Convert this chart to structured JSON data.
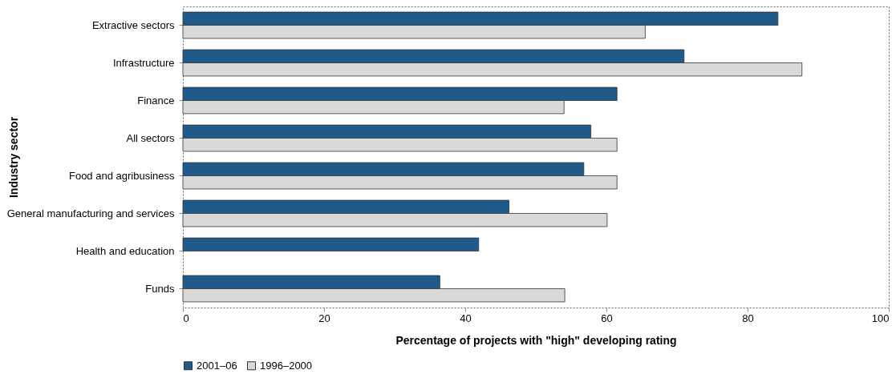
{
  "chart_data": {
    "type": "bar",
    "orientation": "horizontal",
    "categories": [
      "Extractive sectors",
      "Infrastructure",
      "Finance",
      "All sectors",
      "Food and agribusiness",
      "General manufacturing and services",
      "Health and education",
      "Funds"
    ],
    "series": [
      {
        "name": "2001–06",
        "color": "#1f5a8a",
        "values": [
          84.3,
          71.0,
          61.5,
          57.8,
          56.8,
          46.2,
          41.9,
          36.4
        ]
      },
      {
        "name": "1996–2000",
        "color": "#d9d9d9",
        "values": [
          65.5,
          87.7,
          54.0,
          61.5,
          61.5,
          60.1,
          null,
          54.1
        ]
      }
    ],
    "xlim": [
      0,
      100
    ],
    "xticks": [
      0,
      20,
      40,
      60,
      80,
      100
    ],
    "xlabel": "Percentage of projects with \"high\" developing rating",
    "ylabel": "Industry sector",
    "grid": false,
    "legend": "bottom"
  }
}
